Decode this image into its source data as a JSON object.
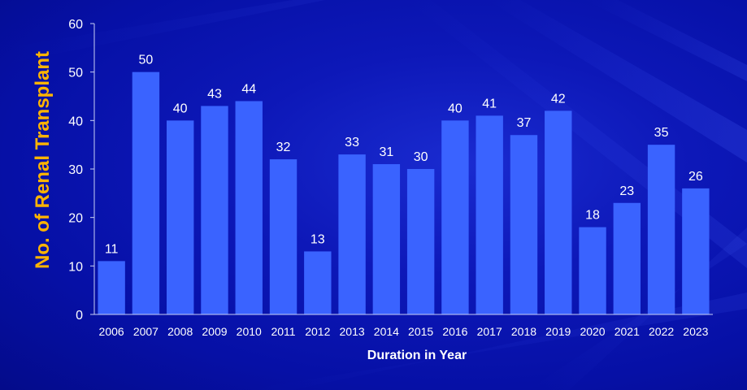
{
  "chart_data": {
    "type": "bar",
    "categories": [
      "2006",
      "2007",
      "2008",
      "2009",
      "2010",
      "2011",
      "2012",
      "2013",
      "2014",
      "2015",
      "2016",
      "2017",
      "2018",
      "2019",
      "2020",
      "2021",
      "2022",
      "2023"
    ],
    "values": [
      11,
      50,
      40,
      43,
      44,
      32,
      13,
      33,
      31,
      30,
      40,
      41,
      37,
      42,
      18,
      23,
      35,
      26
    ],
    "data_labels": [
      "11",
      "50",
      "40",
      "43",
      "44",
      "32",
      "13",
      "33",
      "31",
      "30",
      "40",
      "41",
      "37",
      "42",
      "18",
      "23",
      "35",
      "26"
    ],
    "title": "",
    "xlabel": "Duration in Year",
    "ylabel": "No. of Renal Transplant",
    "ylim": [
      0,
      60
    ],
    "yticks": [
      0,
      10,
      20,
      30,
      40,
      50,
      60
    ],
    "grid": false,
    "legend": "none"
  },
  "colors": {
    "background": "#0610a6",
    "bar": "#3a63ff",
    "text": "#ffffff",
    "ylabel": "#ffb400",
    "axis": "#c8cff5"
  }
}
